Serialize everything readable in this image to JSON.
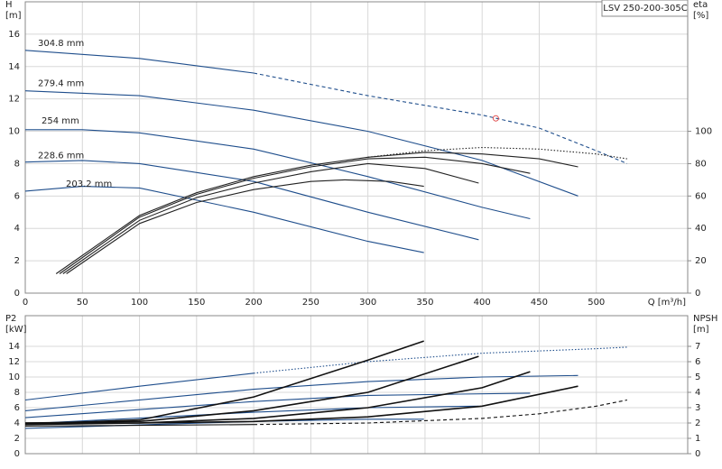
{
  "chart_data": [
    {
      "type": "line",
      "title": "LSV 250-200-305C",
      "x_label": "Q [m³/h]",
      "y_label": "H",
      "y_unit": "[m]",
      "y2_label": "eta",
      "y2_unit": "[%]",
      "xlim": [
        0,
        580
      ],
      "ylim": [
        0,
        18
      ],
      "y2lim": [
        0,
        180
      ],
      "xticks": [
        0,
        50,
        100,
        150,
        200,
        250,
        300,
        350,
        400,
        450,
        500
      ],
      "yticks": [
        0,
        2,
        4,
        6,
        8,
        10,
        12,
        14,
        16
      ],
      "y2ticks": [
        0,
        20,
        40,
        60,
        80,
        100
      ],
      "grid": true,
      "series": [
        {
          "name": "304.8 mm",
          "color": "#1f4e8c",
          "style": "solid",
          "x": [
            0,
            100,
            200
          ],
          "values": [
            15.0,
            14.5,
            13.6
          ]
        },
        {
          "color": "#1f4e8c",
          "style": "dashed",
          "x": [
            200,
            300,
            400,
            450,
            500,
            527
          ],
          "values": [
            13.6,
            12.2,
            11.0,
            10.2,
            8.8,
            8.0
          ]
        },
        {
          "name": "279.4 mm",
          "color": "#1f4e8c",
          "style": "solid",
          "x": [
            0,
            100,
            200,
            300,
            400,
            484
          ],
          "values": [
            12.5,
            12.2,
            11.3,
            10.0,
            8.2,
            6.0
          ]
        },
        {
          "name": "254 mm",
          "color": "#1f4e8c",
          "style": "solid",
          "x": [
            0,
            50,
            100,
            200,
            300,
            400,
            442
          ],
          "values": [
            10.1,
            10.1,
            9.9,
            8.9,
            7.2,
            5.3,
            4.6
          ]
        },
        {
          "name": "228.6 mm",
          "color": "#1f4e8c",
          "style": "solid",
          "x": [
            0,
            50,
            100,
            200,
            300,
            397
          ],
          "values": [
            8.1,
            8.2,
            8.0,
            6.9,
            5.0,
            3.3
          ]
        },
        {
          "name": "203.2 mm",
          "color": "#1f4e8c",
          "style": "solid",
          "x": [
            0,
            50,
            100,
            200,
            300,
            349
          ],
          "values": [
            6.3,
            6.6,
            6.5,
            5.0,
            3.2,
            2.5
          ]
        },
        {
          "color": "#e05050",
          "style": "circle",
          "x": [
            412
          ],
          "values": [
            10.8
          ]
        },
        {
          "color": "#222",
          "style": "dotted",
          "axis": "y2",
          "x": [
            300,
            350,
            400,
            450,
            500,
            527
          ],
          "values": [
            84,
            88,
            90,
            89,
            86,
            83
          ]
        },
        {
          "color": "#222",
          "style": "solid",
          "axis": "y2",
          "x": [
            27,
            100,
            150,
            200,
            250,
            300,
            350,
            400,
            450,
            484
          ],
          "values": [
            12,
            48,
            62,
            72,
            79,
            84,
            87,
            86,
            83,
            78
          ]
        },
        {
          "color": "#222",
          "style": "solid",
          "axis": "y2",
          "x": [
            30,
            100,
            150,
            200,
            250,
            300,
            350,
            400,
            442
          ],
          "values": [
            12,
            47,
            61,
            71,
            78,
            83,
            84,
            80,
            74
          ]
        },
        {
          "color": "#222",
          "style": "solid",
          "axis": "y2",
          "x": [
            33,
            100,
            150,
            200,
            250,
            300,
            350,
            397
          ],
          "values": [
            12,
            45,
            59,
            68,
            75,
            80,
            77,
            68
          ]
        },
        {
          "color": "#222",
          "style": "solid",
          "axis": "y2",
          "x": [
            36,
            100,
            150,
            200,
            250,
            280,
            320,
            349
          ],
          "values": [
            12,
            43,
            56,
            64,
            69,
            70,
            69,
            66
          ]
        }
      ]
    },
    {
      "type": "line",
      "y_label": "P2",
      "y_unit": "[kW]",
      "y2_label": "NPSH",
      "y2_unit": "[m]",
      "xlim": [
        0,
        580
      ],
      "ylim": [
        0,
        18
      ],
      "y2lim": [
        0,
        9
      ],
      "xticks": [
        0,
        50,
        100,
        150,
        200,
        250,
        300,
        350,
        400,
        450,
        500
      ],
      "yticks": [
        0,
        2,
        4,
        6,
        8,
        10,
        12,
        14
      ],
      "y2ticks": [
        0,
        1,
        2,
        3,
        4,
        5,
        6,
        7
      ],
      "grid": true,
      "series": [
        {
          "color": "#1f4e8c",
          "style": "solid",
          "x": [
            0,
            100,
            200
          ],
          "values": [
            7.0,
            8.8,
            10.5
          ]
        },
        {
          "color": "#1f4e8c",
          "style": "dotted",
          "x": [
            200,
            300,
            400,
            500,
            527
          ],
          "values": [
            10.5,
            12.0,
            13.1,
            13.7,
            13.9
          ]
        },
        {
          "color": "#1f4e8c",
          "style": "solid",
          "x": [
            0,
            200,
            300,
            400,
            484
          ],
          "values": [
            5.6,
            8.4,
            9.4,
            10.0,
            10.2
          ]
        },
        {
          "color": "#1f4e8c",
          "style": "solid",
          "x": [
            0,
            200,
            300,
            442
          ],
          "values": [
            4.7,
            6.8,
            7.6,
            7.9
          ]
        },
        {
          "color": "#1f4e8c",
          "style": "solid",
          "x": [
            0,
            200,
            300,
            397
          ],
          "values": [
            3.9,
            5.4,
            6.0,
            6.2
          ]
        },
        {
          "color": "#1f4e8c",
          "style": "solid",
          "x": [
            0,
            200,
            300,
            349
          ],
          "values": [
            3.3,
            4.2,
            4.5,
            4.5
          ]
        },
        {
          "color": "#111",
          "style": "solid",
          "axis": "y2",
          "x": [
            0,
            100,
            200
          ],
          "values": [
            1.8,
            1.85,
            1.9
          ]
        },
        {
          "color": "#111",
          "style": "dashed",
          "axis": "y2",
          "x": [
            200,
            300,
            400,
            450,
            500,
            527
          ],
          "values": [
            1.9,
            2.0,
            2.3,
            2.6,
            3.1,
            3.5
          ]
        },
        {
          "color": "#111",
          "style": "bold",
          "axis": "y2",
          "x": [
            0,
            100,
            200,
            300,
            400,
            484
          ],
          "values": [
            2.0,
            2.0,
            2.1,
            2.4,
            3.1,
            4.4
          ]
        },
        {
          "color": "#111",
          "style": "bold",
          "axis": "y2",
          "x": [
            0,
            100,
            200,
            300,
            400,
            442
          ],
          "values": [
            1.9,
            2.0,
            2.3,
            3.0,
            4.3,
            5.35
          ]
        },
        {
          "color": "#111",
          "style": "bold",
          "axis": "y2",
          "x": [
            0,
            100,
            200,
            300,
            397
          ],
          "values": [
            2.0,
            2.1,
            2.8,
            4.0,
            6.35
          ]
        },
        {
          "color": "#111",
          "style": "bold",
          "axis": "y2",
          "x": [
            0,
            100,
            200,
            300,
            349
          ],
          "values": [
            1.94,
            2.2,
            3.7,
            6.1,
            7.35
          ]
        }
      ]
    }
  ]
}
